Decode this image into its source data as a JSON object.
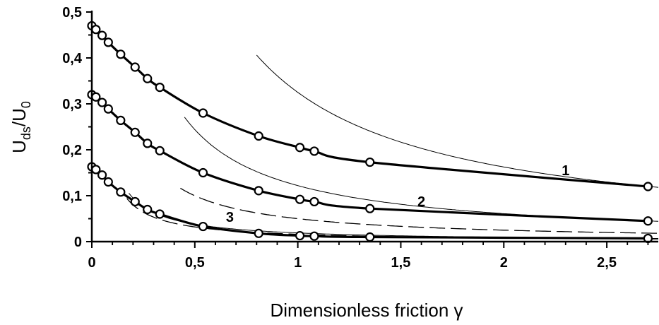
{
  "chart_data": {
    "type": "line",
    "title": "",
    "xlabel": "Dimensionless friction γ",
    "ylabel": "Uds/U0",
    "ylabel_parts": {
      "base1": "U",
      "sub1": "ds",
      "sep": "/U",
      "sub2": "0"
    },
    "xlim": [
      0,
      2.75
    ],
    "ylim": [
      0,
      0.5
    ],
    "x_ticks": [
      0,
      0.5,
      1,
      1.5,
      2,
      2.5
    ],
    "x_tick_labels": [
      "0",
      "0,5",
      "1",
      "1,5",
      "2",
      "2,5"
    ],
    "y_ticks": [
      0,
      0.1,
      0.2,
      0.3,
      0.4,
      0.5
    ],
    "y_tick_labels": [
      "0",
      "0,1",
      "0,2",
      "0,3",
      "0,4",
      "0,5"
    ],
    "grid": false,
    "series": [
      {
        "name": "1",
        "style": "thick-solid-with-circles",
        "x": [
          0.0,
          0.02,
          0.05,
          0.08,
          0.14,
          0.21,
          0.27,
          0.33,
          0.54,
          0.81,
          1.01,
          1.08,
          1.35,
          2.7
        ],
        "y": [
          0.47,
          0.462,
          0.449,
          0.434,
          0.408,
          0.38,
          0.355,
          0.336,
          0.28,
          0.23,
          0.205,
          0.197,
          0.173,
          0.12
        ]
      },
      {
        "name": "2",
        "style": "thick-solid-with-circles",
        "x": [
          0.0,
          0.02,
          0.05,
          0.08,
          0.14,
          0.21,
          0.27,
          0.33,
          0.54,
          0.81,
          1.01,
          1.08,
          1.35,
          2.7
        ],
        "y": [
          0.32,
          0.315,
          0.303,
          0.289,
          0.264,
          0.238,
          0.214,
          0.198,
          0.15,
          0.111,
          0.092,
          0.087,
          0.072,
          0.045
        ]
      },
      {
        "name": "3",
        "style": "thick-solid-with-circles",
        "x": [
          0.0,
          0.02,
          0.05,
          0.08,
          0.14,
          0.21,
          0.27,
          0.33,
          0.54,
          0.81,
          1.01,
          1.08,
          1.35,
          2.7
        ],
        "y": [
          0.163,
          0.157,
          0.145,
          0.13,
          0.108,
          0.087,
          0.07,
          0.06,
          0.033,
          0.018,
          0.013,
          0.012,
          0.01,
          0.007
        ]
      }
    ],
    "asymptotes": [
      {
        "style": "dashed",
        "k": 0.016,
        "x_start": 0.17
      },
      {
        "style": "dashed",
        "k": 0.05,
        "x_start": 0.43
      },
      {
        "style": "thin-solid",
        "k": 0.325,
        "x_start": 0.8
      },
      {
        "style": "thin-solid",
        "k": 0.122,
        "x_start": 0.45
      },
      {
        "style": "thin-solid",
        "k": 0.019,
        "x_start": 0.18
      }
    ],
    "series_labels": [
      {
        "text": "1",
        "x": 2.3,
        "y": 0.145
      },
      {
        "text": "2",
        "x": 1.6,
        "y": 0.077
      },
      {
        "text": "3",
        "x": 0.67,
        "y": 0.043
      }
    ]
  }
}
